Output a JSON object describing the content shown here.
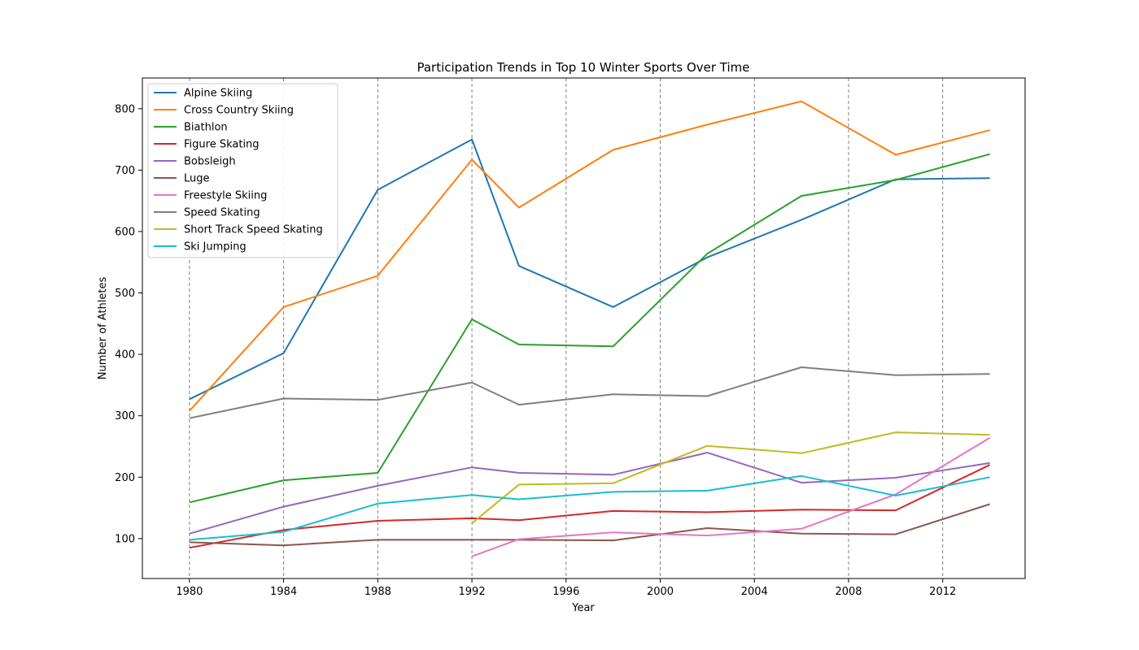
{
  "chart_data": {
    "type": "line",
    "title": "Participation Trends in Top 10 Winter Sports Over Time",
    "xlabel": "Year",
    "ylabel": "Number of Athletes",
    "xlim": [
      1978,
      2015.5
    ],
    "ylim": [
      35,
      850
    ],
    "x_ticks": [
      1980,
      1984,
      1988,
      1992,
      1996,
      2000,
      2004,
      2008,
      2012
    ],
    "y_ticks": [
      100,
      200,
      300,
      400,
      500,
      600,
      700,
      800
    ],
    "vertical_gridlines": [
      1980,
      1984,
      1988,
      1992,
      1996,
      2000,
      2004,
      2008,
      2012
    ],
    "grid_style": "dashed vertical",
    "legend_position": "upper-left",
    "series": [
      {
        "name": "Alpine Skiing",
        "color": "#1f77b4",
        "x": [
          1980,
          1984,
          1988,
          1992,
          1994,
          1998,
          2002,
          2006,
          2010,
          2014
        ],
        "y": [
          327,
          402,
          668,
          750,
          544,
          477,
          558,
          619,
          685,
          687
        ]
      },
      {
        "name": "Cross Country Skiing",
        "color": "#ff7f0e",
        "x": [
          1980,
          1984,
          1988,
          1992,
          1994,
          1998,
          2002,
          2006,
          2010,
          2014
        ],
        "y": [
          308,
          477,
          528,
          717,
          639,
          733,
          774,
          812,
          725,
          765
        ]
      },
      {
        "name": "Biathlon",
        "color": "#2ca02c",
        "x": [
          1980,
          1984,
          1988,
          1992,
          1994,
          1998,
          2002,
          2006,
          2010,
          2014
        ],
        "y": [
          159,
          195,
          207,
          457,
          416,
          413,
          564,
          658,
          684,
          726
        ]
      },
      {
        "name": "Figure Skating",
        "color": "#d62728",
        "x": [
          1980,
          1984,
          1988,
          1992,
          1994,
          1998,
          2002,
          2006,
          2010,
          2014
        ],
        "y": [
          85,
          114,
          129,
          133,
          130,
          145,
          143,
          147,
          146,
          220
        ]
      },
      {
        "name": "Bobsleigh",
        "color": "#9467bd",
        "x": [
          1980,
          1984,
          1988,
          1992,
          1994,
          1998,
          2002,
          2006,
          2010,
          2014
        ],
        "y": [
          108,
          152,
          186,
          216,
          207,
          204,
          240,
          191,
          199,
          223
        ]
      },
      {
        "name": "Luge",
        "color": "#8c564b",
        "x": [
          1980,
          1984,
          1988,
          1992,
          1994,
          1998,
          2002,
          2006,
          2010,
          2014
        ],
        "y": [
          94,
          89,
          98,
          98,
          98,
          97,
          117,
          108,
          107,
          156
        ]
      },
      {
        "name": "Freestyle Skiing",
        "color": "#e377c2",
        "x": [
          1992,
          1994,
          1998,
          2002,
          2006,
          2010,
          2014
        ],
        "y": [
          71,
          99,
          110,
          105,
          116,
          172,
          264
        ]
      },
      {
        "name": "Speed Skating",
        "color": "#7f7f7f",
        "x": [
          1980,
          1984,
          1988,
          1992,
          1994,
          1998,
          2002,
          2006,
          2010,
          2014
        ],
        "y": [
          296,
          328,
          326,
          354,
          318,
          335,
          332,
          379,
          366,
          368
        ]
      },
      {
        "name": "Short Track Speed Skating",
        "color": "#bcbd22",
        "x": [
          1992,
          1994,
          1998,
          2002,
          2006,
          2010,
          2014
        ],
        "y": [
          125,
          188,
          190,
          251,
          239,
          273,
          269
        ]
      },
      {
        "name": "Ski Jumping",
        "color": "#17becf",
        "x": [
          1980,
          1984,
          1988,
          1992,
          1994,
          1998,
          2002,
          2006,
          2010,
          2014
        ],
        "y": [
          98,
          111,
          157,
          171,
          164,
          176,
          178,
          202,
          170,
          200
        ]
      }
    ]
  }
}
